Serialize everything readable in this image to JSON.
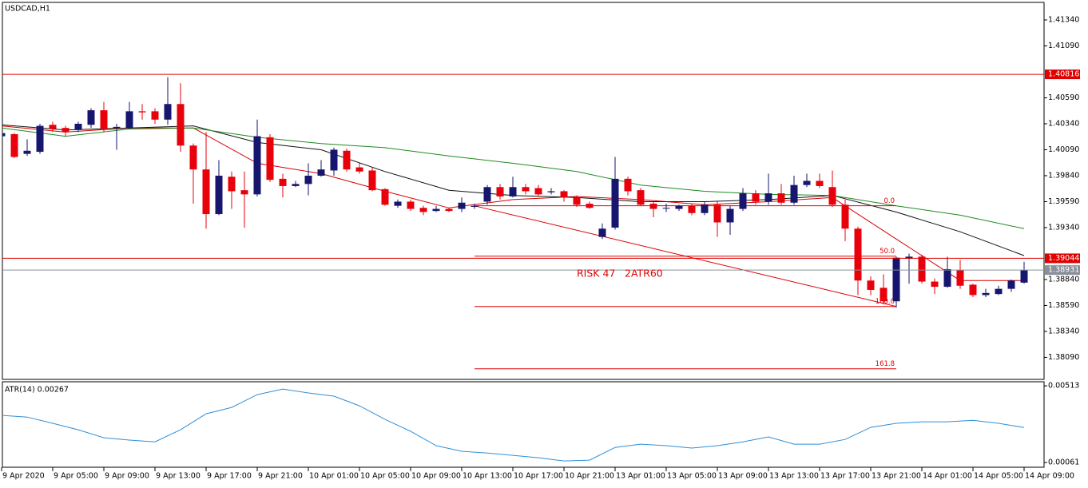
{
  "chart_data": [
    {
      "type": "candlestick",
      "title": "USDCAD,H1",
      "up_color": "#16166e",
      "down_color": "#e8000b",
      "open": [
        1.4022,
        1.4024,
        1.4005,
        1.4007,
        1.4033,
        1.403,
        1.4028,
        1.4033,
        1.4047,
        1.403,
        1.403,
        1.4046,
        1.4046,
        1.4038,
        1.4053,
        1.4013,
        1.399,
        1.3947,
        1.3983,
        1.397,
        1.3966,
        1.4021,
        1.3981,
        1.3974,
        1.3976,
        1.3984,
        1.3989,
        1.4008,
        1.3992,
        1.3989,
        1.3971,
        1.3955,
        1.3959,
        1.3953,
        1.395,
        1.3952,
        1.3952,
        1.3954,
        1.3959,
        1.3973,
        1.3964,
        1.3973,
        1.3972,
        1.3968,
        1.3969,
        1.3963,
        1.3957,
        1.3925,
        1.3934,
        1.3981,
        1.397,
        1.3957,
        1.3953,
        1.3952,
        1.3955,
        1.3948,
        1.3956,
        1.3939,
        1.3952,
        1.3967,
        1.3959,
        1.3967,
        1.3958,
        1.3975,
        1.3979,
        1.3973,
        1.3956,
        1.3933,
        1.3883,
        1.3876,
        1.3863,
        1.3904,
        1.3906,
        1.3882,
        1.3877,
        1.3893,
        1.3879,
        1.3869,
        1.387,
        1.3875,
        1.3881
      ],
      "high": [
        1.4027,
        1.4025,
        1.4019,
        1.4034,
        1.4036,
        1.4032,
        1.4036,
        1.4049,
        1.4055,
        1.4034,
        1.4055,
        1.4053,
        1.4049,
        1.4079,
        1.4073,
        1.4015,
        1.4026,
        1.3999,
        1.3988,
        1.3988,
        1.4038,
        1.4024,
        1.3986,
        1.3979,
        1.3996,
        1.3999,
        1.4011,
        1.401,
        1.3996,
        1.3992,
        1.3972,
        1.3961,
        1.3961,
        1.3955,
        1.3955,
        1.3953,
        1.3963,
        1.3957,
        1.3975,
        1.3976,
        1.3983,
        1.3976,
        1.3975,
        1.3972,
        1.397,
        1.3965,
        1.3959,
        1.3938,
        1.4002,
        1.3983,
        1.3972,
        1.3959,
        1.3957,
        1.3956,
        1.3957,
        1.3959,
        1.3959,
        1.3955,
        1.3972,
        1.397,
        1.3986,
        1.3976,
        1.3984,
        1.3986,
        1.3986,
        1.3989,
        1.3961,
        1.3935,
        1.3887,
        1.3889,
        1.3906,
        1.3909,
        1.3908,
        1.3885,
        1.3906,
        1.3903,
        1.388,
        1.3875,
        1.3878,
        1.3884,
        1.3901
      ],
      "low": [
        1.4021,
        1.4001,
        1.4003,
        1.4005,
        1.4026,
        1.4022,
        1.4026,
        1.403,
        1.4026,
        1.4009,
        1.4029,
        1.4038,
        1.4034,
        1.4033,
        1.4007,
        1.3957,
        1.3933,
        1.3946,
        1.3952,
        1.3934,
        1.3964,
        1.3978,
        1.3963,
        1.3973,
        1.3965,
        1.3983,
        1.3984,
        1.3988,
        1.3986,
        1.3969,
        1.3955,
        1.3953,
        1.395,
        1.3946,
        1.3949,
        1.3949,
        1.3949,
        1.3952,
        1.3956,
        1.3961,
        1.3963,
        1.3966,
        1.3964,
        1.3966,
        1.3959,
        1.3954,
        1.3952,
        1.3923,
        1.3932,
        1.3965,
        1.3955,
        1.3944,
        1.3949,
        1.395,
        1.3946,
        1.3946,
        1.3925,
        1.3927,
        1.395,
        1.3956,
        1.3956,
        1.3956,
        1.3956,
        1.3973,
        1.3972,
        1.3954,
        1.3921,
        1.3869,
        1.3869,
        1.386,
        1.3857,
        1.388,
        1.388,
        1.387,
        1.3876,
        1.3875,
        1.3867,
        1.3867,
        1.3869,
        1.3872,
        1.388
      ],
      "close": [
        1.4025,
        1.4002,
        1.4008,
        1.4032,
        1.4029,
        1.4026,
        1.4034,
        1.4047,
        1.4029,
        1.4031,
        1.4046,
        1.4045,
        1.4038,
        1.4053,
        1.4013,
        1.399,
        1.3947,
        1.3984,
        1.3969,
        1.3966,
        1.4022,
        1.398,
        1.3974,
        1.3976,
        1.3984,
        1.399,
        1.4009,
        1.399,
        1.3988,
        1.397,
        1.3956,
        1.3959,
        1.3952,
        1.3949,
        1.3952,
        1.395,
        1.3958,
        1.3955,
        1.3973,
        1.3964,
        1.3973,
        1.3969,
        1.3966,
        1.3969,
        1.3963,
        1.3956,
        1.3953,
        1.3933,
        1.3981,
        1.3969,
        1.3956,
        1.3952,
        1.3953,
        1.3955,
        1.3948,
        1.3956,
        1.3939,
        1.3952,
        1.3967,
        1.3959,
        1.3967,
        1.3958,
        1.3975,
        1.3979,
        1.3974,
        1.3956,
        1.3933,
        1.3883,
        1.3874,
        1.3863,
        1.3905,
        1.3906,
        1.3882,
        1.3877,
        1.3894,
        1.3878,
        1.3869,
        1.3871,
        1.3875,
        1.3883,
        1.3893
      ],
      "xlim": [
        0.0625,
        81.5625
      ],
      "xticks": [
        {
          "value": 0,
          "label": "9 Apr 2020"
        },
        {
          "value": 4,
          "label": "9 Apr 05:00"
        },
        {
          "value": 8,
          "label": "9 Apr 09:00"
        },
        {
          "value": 12,
          "label": "9 Apr 13:00"
        },
        {
          "value": 16,
          "label": "9 Apr 17:00"
        },
        {
          "value": 20,
          "label": "9 Apr 21:00"
        },
        {
          "value": 24,
          "label": "10 Apr 01:00"
        },
        {
          "value": 28,
          "label": "10 Apr 05:00"
        },
        {
          "value": 32,
          "label": "10 Apr 09:00"
        },
        {
          "value": 36,
          "label": "10 Apr 13:00"
        },
        {
          "value": 40,
          "label": "10 Apr 17:00"
        },
        {
          "value": 44,
          "label": "10 Apr 21:00"
        },
        {
          "value": 48,
          "label": "13 Apr 01:00"
        },
        {
          "value": 52,
          "label": "13 Apr 05:00"
        },
        {
          "value": 56,
          "label": "13 Apr 09:00"
        },
        {
          "value": 60,
          "label": "13 Apr 13:00"
        },
        {
          "value": 64,
          "label": "13 Apr 17:00"
        },
        {
          "value": 68,
          "label": "13 Apr 21:00"
        },
        {
          "value": 72,
          "label": "14 Apr 01:00"
        },
        {
          "value": 76,
          "label": "14 Apr 05:00"
        },
        {
          "value": 80,
          "label": "14 Apr 09:00"
        }
      ],
      "ylim": [
        1.37878,
        1.41509
      ],
      "yticks": [
        {
          "value": 1.4134,
          "label": "1.41340"
        },
        {
          "value": 1.4109,
          "label": "1.41090"
        },
        {
          "value": 1.4059,
          "label": "1.40590"
        },
        {
          "value": 1.4034,
          "label": "1.40340"
        },
        {
          "value": 1.4009,
          "label": "1.40090"
        },
        {
          "value": 1.3984,
          "label": "1.39840"
        },
        {
          "value": 1.3959,
          "label": "1.39590"
        },
        {
          "value": 1.3934,
          "label": "1.39340"
        },
        {
          "value": 1.3884,
          "label": "1.38840"
        },
        {
          "value": 1.3859,
          "label": "1.38590"
        },
        {
          "value": 1.3834,
          "label": "1.38340"
        },
        {
          "value": 1.3809,
          "label": "1.38090"
        }
      ],
      "lines": [
        {
          "color": "#d40000",
          "x": [
            0,
            5,
            10,
            15,
            20,
            25,
            30,
            35,
            40,
            45,
            50,
            55,
            60,
            65,
            70,
            75,
            80
          ],
          "values": [
            1.4032,
            1.4026,
            1.403,
            1.403,
            1.3996,
            1.3986,
            1.3969,
            1.3953,
            1.3961,
            1.3964,
            1.3961,
            1.3956,
            1.3959,
            1.3963,
            1.3923,
            1.3883,
            1.3883
          ]
        },
        {
          "color": "#111111",
          "x": [
            0,
            5,
            10,
            15,
            20,
            25,
            30,
            35,
            40,
            45,
            50,
            55,
            60,
            65,
            70,
            75,
            80
          ],
          "values": [
            1.4033,
            1.4028,
            1.403,
            1.4032,
            1.4016,
            1.4009,
            1.3988,
            1.397,
            1.3965,
            1.3963,
            1.3959,
            1.3959,
            1.3961,
            1.3965,
            1.3949,
            1.393,
            1.3907
          ]
        },
        {
          "color": "#1f8a1f",
          "x": [
            0,
            5,
            10,
            15,
            20,
            25,
            30,
            35,
            40,
            45,
            50,
            55,
            60,
            65,
            70,
            75,
            80
          ],
          "values": [
            1.403,
            1.4022,
            1.4029,
            1.403,
            1.4021,
            1.4015,
            1.4011,
            1.4003,
            1.3996,
            1.3988,
            1.3975,
            1.3969,
            1.3966,
            1.3965,
            1.3955,
            1.3946,
            1.3933
          ]
        }
      ],
      "hlines": [
        {
          "value": 1.40816,
          "color": "#e00000"
        },
        {
          "value": 1.39044,
          "color": "#e00000"
        },
        {
          "value": 1.38931,
          "color": "#8a9099"
        }
      ],
      "trendline": {
        "color": "#e00000",
        "x": [
          37,
          70
        ],
        "values": [
          1.3955,
          1.3858
        ]
      },
      "fibonacci": {
        "color": "#e00000",
        "x": [
          37,
          70
        ],
        "levels": [
          {
            "value": 1.3955,
            "label": "0.0"
          },
          {
            "value": 1.39065,
            "label": "50.0"
          },
          {
            "value": 1.3858,
            "label": "100.0"
          },
          {
            "value": 1.3798,
            "label": "161.8"
          }
        ]
      },
      "annotations": [
        "RISK 47",
        "2ATR60"
      ]
    },
    {
      "type": "line",
      "title": "ATR(14) 0.00267",
      "color": "#2f8fd8",
      "x": [
        0,
        2,
        4,
        6,
        8,
        10,
        12,
        14,
        16,
        18,
        20,
        22,
        24,
        26,
        28,
        30,
        32,
        34,
        36,
        38,
        40,
        42,
        44,
        46,
        48,
        50,
        52,
        54,
        56,
        58,
        60,
        62,
        64,
        66,
        68,
        70,
        72,
        74,
        76,
        78,
        80
      ],
      "values": [
        0.00339,
        0.00329,
        0.00292,
        0.00254,
        0.00207,
        0.00193,
        0.00183,
        0.00254,
        0.00348,
        0.00386,
        0.00461,
        0.00494,
        0.00471,
        0.00452,
        0.00395,
        0.00315,
        0.00245,
        0.0016,
        0.00127,
        0.00117,
        0.00103,
        0.00089,
        0.0007,
        0.00075,
        0.0015,
        0.00169,
        0.0016,
        0.00146,
        0.0016,
        0.00183,
        0.00212,
        0.00169,
        0.00169,
        0.00197,
        0.00268,
        0.00292,
        0.00301,
        0.00301,
        0.0031,
        0.00292,
        0.00267
      ],
      "ylim": [
        0.00033,
        0.00537
      ],
      "yticks": [
        0.00513,
        0.00061
      ]
    }
  ]
}
